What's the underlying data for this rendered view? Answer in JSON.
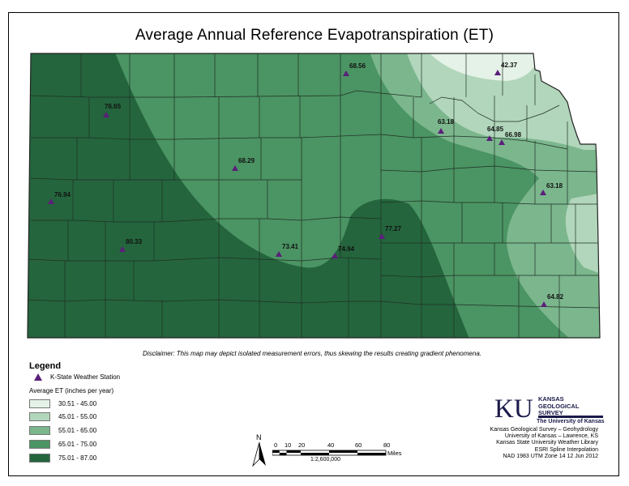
{
  "title": "Average Annual Reference Evapotranspiration (ET)",
  "disclaimer": "Disclaimer: This map may depict isolated measurement errors, thus skewing the results creating gradient phenomena.",
  "legend": {
    "title": "Legend",
    "station_label": "K-State Weather Station",
    "et_heading": "Average ET (inches per year)",
    "classes": [
      {
        "label": "30.51 - 45.00",
        "color": "#e4f2e7"
      },
      {
        "label": "45.01 - 55.00",
        "color": "#b1d6bb"
      },
      {
        "label": "55.01 - 65.00",
        "color": "#7bb68d"
      },
      {
        "label": "65.01 - 75.00",
        "color": "#4b9463"
      },
      {
        "label": "75.01 - 87.00",
        "color": "#24653d"
      }
    ]
  },
  "stations": [
    {
      "value": "68.56"
    },
    {
      "value": "42.37"
    },
    {
      "value": "76.65"
    },
    {
      "value": "63.18"
    },
    {
      "value": "64.85"
    },
    {
      "value": "66.98"
    },
    {
      "value": "68.29"
    },
    {
      "value": "76.94"
    },
    {
      "value": "63.18"
    },
    {
      "value": "80.33"
    },
    {
      "value": "73.41"
    },
    {
      "value": "74.94"
    },
    {
      "value": "77.27"
    },
    {
      "value": "64.82"
    }
  ],
  "logo": {
    "mark": "KU",
    "name_line1": "KANSAS",
    "name_line2": "GEOLOGICAL",
    "name_line3": "SURVEY",
    "university": "The University of Kansas"
  },
  "credits": [
    "Kansas Geological Survey – Geohydrology",
    "University of Kansas – Lawrence, KS",
    "Kansas State University Weather Library",
    "ESRI Spline Interpolation",
    "NAD 1983 UTM Zone 14   12 Jun 2012"
  ],
  "scale": {
    "north": "N",
    "ticks": [
      "0",
      "10",
      "20",
      "40",
      "60",
      "80"
    ],
    "unit": "Miles",
    "ratio": "1:2,600,000"
  }
}
